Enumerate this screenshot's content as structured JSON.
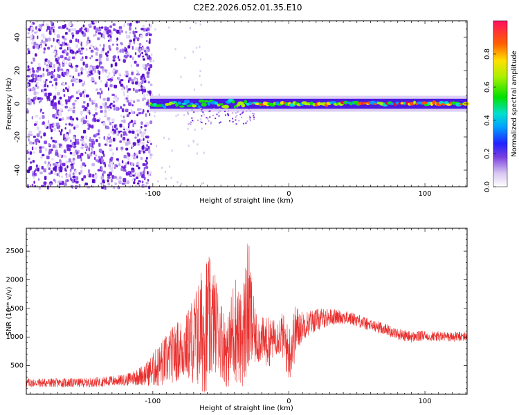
{
  "title": "C2E2.2026.052.01.35.E10",
  "colors": {
    "snr_line": "#e8302e",
    "frame": "#000000",
    "background": "#ffffff"
  },
  "chart_data": [
    {
      "type": "heatmap",
      "name": "spectrogram",
      "xlabel": "Height of straight line (km)",
      "ylabel": "Frequency (Hz)",
      "xlim": [
        -193,
        131
      ],
      "ylim": [
        -50,
        50
      ],
      "x_ticks": [
        -100,
        0,
        100
      ],
      "x_tick_labels": [
        "-100",
        "0",
        "100"
      ],
      "y_ticks": [
        -40,
        -20,
        0,
        20,
        40
      ],
      "y_tick_labels": [
        "-40",
        "-20",
        "0",
        "20",
        "40"
      ],
      "colorbar": {
        "label": "Normalized spectral amplitude",
        "range": [
          0,
          1
        ],
        "ticks": [
          0.0,
          0.2,
          0.4,
          0.6,
          0.8
        ],
        "tick_labels": [
          "0.0",
          "0.2",
          "0.4",
          "0.6",
          "0.8"
        ]
      },
      "features": {
        "noise_region_km": [
          -193,
          -102
        ],
        "signal_band_center_hz": 0,
        "signal_band_halfwidth_hz": 3
      }
    },
    {
      "type": "line",
      "name": "snr",
      "xlabel": "Height of straight line (km)",
      "ylabel": "SNR (10 * v/v)",
      "xlim": [
        -193,
        131
      ],
      "ylim": [
        0,
        2900
      ],
      "x_ticks": [
        -100,
        0,
        100
      ],
      "x_tick_labels": [
        "-100",
        "0",
        "100"
      ],
      "y_ticks": [
        500,
        1000,
        1500,
        2000,
        2500
      ],
      "y_tick_labels": [
        "500",
        "1000",
        "1500",
        "2000",
        "2500"
      ],
      "envelope_km": [
        -193,
        -150,
        -120,
        -105,
        -95,
        -85,
        -75,
        -68,
        -60,
        -55,
        -50,
        -45,
        -40,
        -35,
        -30,
        -25,
        -20,
        -15,
        -10,
        -5,
        0,
        5,
        10,
        20,
        30,
        40,
        50,
        60,
        70,
        80,
        90,
        100,
        110,
        120,
        131
      ],
      "envelope_snr_mid": [
        200,
        200,
        250,
        350,
        500,
        700,
        850,
        1000,
        1200,
        1300,
        1000,
        700,
        1200,
        900,
        1500,
        1000,
        950,
        900,
        1000,
        1050,
        700,
        1100,
        1200,
        1300,
        1350,
        1350,
        1300,
        1200,
        1150,
        1050,
        1000,
        1020,
        1010,
        1000,
        1010
      ],
      "envelope_snr_amp": [
        80,
        80,
        100,
        200,
        400,
        500,
        600,
        900,
        1300,
        900,
        700,
        600,
        1000,
        800,
        1300,
        500,
        400,
        450,
        300,
        400,
        500,
        500,
        250,
        200,
        150,
        120,
        120,
        110,
        100,
        100,
        100,
        90,
        90,
        90,
        90
      ]
    }
  ]
}
